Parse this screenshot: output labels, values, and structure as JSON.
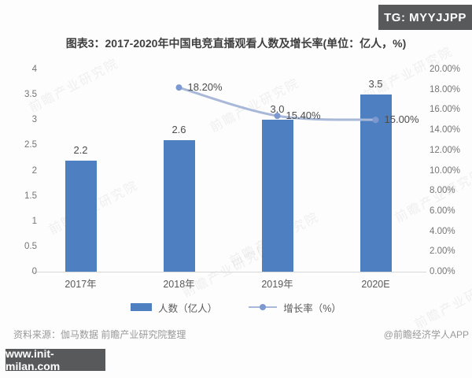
{
  "overlays": {
    "top_badge": "TG: MYYJJPP",
    "bottom_badge": "www.init-milan.com"
  },
  "title": "图表3：2017-2020年中国电竞直播观看人数及增长率(单位：亿人，%)",
  "source_note": "资料来源：伽马数据 前瞻产业研究院整理",
  "credit": "@前瞻经济学人APP",
  "watermark": "前瞻产业研究院",
  "colors": {
    "bar": "#4d7fc1",
    "line": "#a8b8d8",
    "marker": "#7c98d0",
    "badge_bg": "#58595b",
    "baseline": "#d8d8d8"
  },
  "chart_data": {
    "type": "bar",
    "categories": [
      "2017年",
      "2018年",
      "2019年",
      "2020E"
    ],
    "series": [
      {
        "name": "人数（亿人）",
        "type": "bar",
        "axis": "left",
        "values": [
          2.2,
          2.6,
          3.0,
          3.5
        ],
        "labels": [
          "2.2",
          "2.6",
          "3.0",
          "3.5"
        ]
      },
      {
        "name": "增长率（%）",
        "type": "line",
        "axis": "right",
        "values": [
          null,
          18.2,
          15.4,
          15.0
        ],
        "labels": [
          null,
          "18.20%",
          "15.40%",
          "15.00%"
        ]
      }
    ],
    "left_axis": {
      "min": 0,
      "max": 4,
      "ticks": [
        "4",
        "3.5",
        "3",
        "2.5",
        "2",
        "1.5",
        "1",
        "0.5",
        "0"
      ]
    },
    "right_axis": {
      "min": 0,
      "max": 20,
      "ticks": [
        "20.00%",
        "18.00%",
        "16.00%",
        "14.00%",
        "12.00%",
        "10.00%",
        "8.00%",
        "6.00%",
        "4.00%",
        "2.00%",
        "0.00%"
      ]
    },
    "legend": [
      {
        "label": "人数（亿人）",
        "swatch": "bar"
      },
      {
        "label": "增长率（%）",
        "swatch": "line"
      }
    ],
    "grid": false,
    "legend_position": "bottom"
  }
}
